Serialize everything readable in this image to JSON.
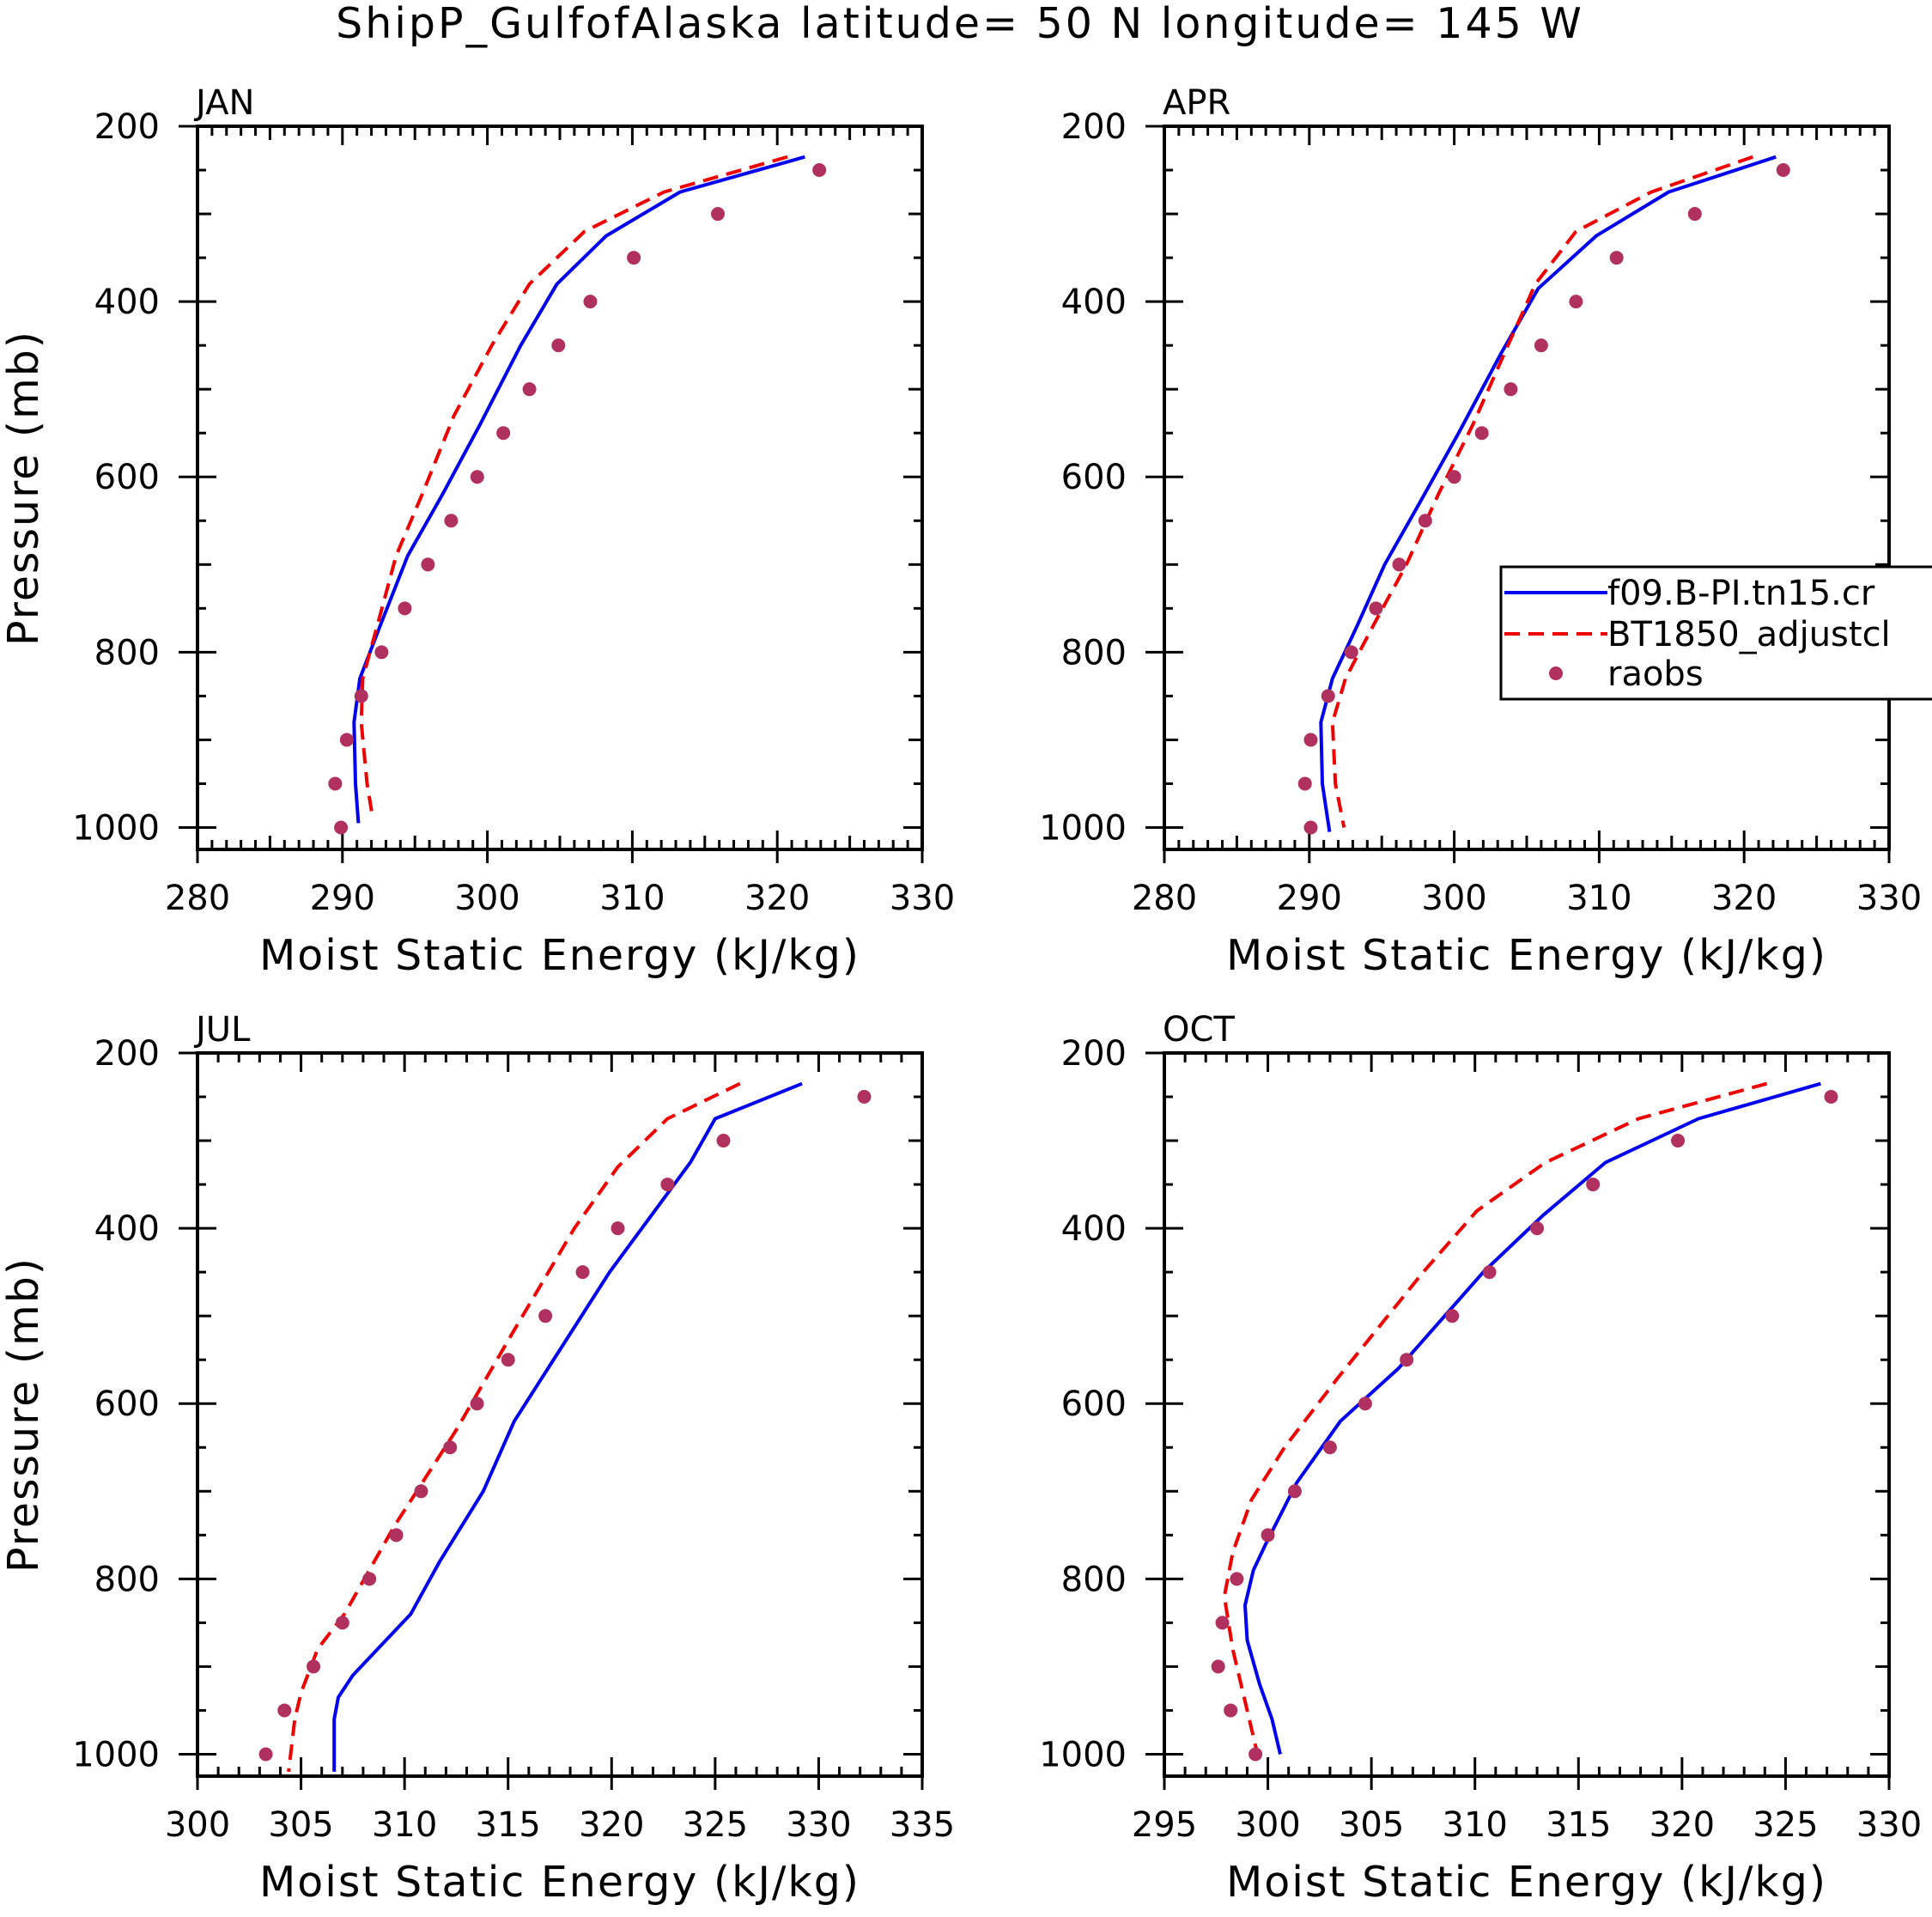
{
  "title": "ShipP_GulfofAlaska  latitude= 50 N longitude= 145 W",
  "colors": {
    "model_a": "#0000ee",
    "model_b": "#ee0000",
    "obs": "#b03060",
    "axis": "#000000"
  },
  "legend": {
    "entries": [
      "f09.B-PI.tn15.cr",
      "BT1850_adjustcl",
      "raobs"
    ]
  },
  "chart_data": [
    {
      "type": "line",
      "panel": "JAN",
      "xlabel": "Moist Static Energy (kJ/kg)",
      "ylabel": "Pressure (mb)",
      "xlim": [
        280,
        330
      ],
      "ylim": [
        1000,
        200
      ],
      "x_ticks": [
        "280",
        "290",
        "300",
        "310",
        "320",
        "330"
      ],
      "y_ticks": [
        "200",
        "400",
        "600",
        "800",
        "1000"
      ],
      "series": [
        {
          "name": "f09.B-PI.tn15.cr",
          "style": "solid",
          "x": [
            321.9,
            313.3,
            308.2,
            304.8,
            302.3,
            299.5,
            296.9,
            294.5,
            292.6,
            291.2,
            290.8,
            290.9,
            291.1
          ],
          "y": [
            235,
            275,
            325,
            380,
            450,
            540,
            620,
            690,
            770,
            830,
            880,
            950,
            995
          ]
        },
        {
          "name": "BT1850_adjustcl",
          "style": "dashed",
          "x": [
            320.7,
            312.2,
            306.7,
            302.9,
            300.3,
            297.7,
            295.5,
            293.7,
            292.4,
            291.4,
            291.3,
            291.7,
            292.1
          ],
          "y": [
            235,
            275,
            320,
            380,
            450,
            530,
            620,
            690,
            770,
            830,
            880,
            950,
            990
          ]
        },
        {
          "name": "raobs",
          "style": "points",
          "x": [
            322.9,
            315.9,
            310.1,
            307.1,
            304.9,
            302.9,
            301.1,
            299.3,
            297.5,
            295.9,
            294.3,
            292.7,
            291.3,
            290.3,
            289.5,
            289.9
          ],
          "y": [
            250,
            300,
            350,
            400,
            450,
            500,
            550,
            600,
            650,
            700,
            750,
            800,
            850,
            900,
            950,
            1000
          ]
        }
      ]
    },
    {
      "type": "line",
      "panel": "APR",
      "xlabel": "Moist Static Energy (kJ/kg)",
      "ylabel": "",
      "xlim": [
        280,
        330
      ],
      "ylim": [
        1000,
        200
      ],
      "x_ticks": [
        "280",
        "290",
        "300",
        "310",
        "320",
        "330"
      ],
      "y_ticks": [
        "200",
        "400",
        "600",
        "800",
        "1000"
      ],
      "series": [
        {
          "name": "f09.B-PI.tn15.cr",
          "style": "solid",
          "x": [
            322.2,
            314.8,
            309.8,
            305.8,
            303.2,
            300.3,
            297.6,
            295.2,
            293.3,
            291.6,
            290.8,
            290.9,
            291.4
          ],
          "y": [
            235,
            275,
            325,
            385,
            460,
            550,
            630,
            700,
            770,
            830,
            880,
            950,
            1005
          ]
        },
        {
          "name": "BT1850_adjustcl",
          "style": "dashed",
          "x": [
            320.6,
            313.6,
            308.4,
            305.6,
            303.7,
            301.3,
            298.9,
            296.7,
            294.4,
            292.5,
            291.6,
            291.8,
            292.4
          ],
          "y": [
            235,
            275,
            320,
            380,
            450,
            540,
            620,
            700,
            770,
            830,
            880,
            950,
            1000
          ]
        },
        {
          "name": "raobs",
          "style": "points",
          "x": [
            322.7,
            316.6,
            311.2,
            308.4,
            306.0,
            303.9,
            301.9,
            300.0,
            298.0,
            296.2,
            294.6,
            292.9,
            291.3,
            290.1,
            289.7,
            290.1
          ],
          "y": [
            250,
            300,
            350,
            400,
            450,
            500,
            550,
            600,
            650,
            700,
            750,
            800,
            850,
            900,
            950,
            1000
          ]
        }
      ]
    },
    {
      "type": "line",
      "panel": "JUL",
      "xlabel": "Moist Static Energy (kJ/kg)",
      "ylabel": "Pressure (mb)",
      "xlim": [
        300,
        335
      ],
      "ylim": [
        1000,
        200
      ],
      "x_ticks": [
        "300",
        "305",
        "310",
        "315",
        "320",
        "325",
        "330",
        "335"
      ],
      "y_ticks": [
        "200",
        "400",
        "600",
        "800",
        "1000"
      ],
      "series": [
        {
          "name": "f09.B-PI.tn15.cr",
          "style": "solid",
          "x": [
            329.2,
            325.0,
            323.8,
            319.9,
            315.3,
            313.8,
            311.7,
            310.3,
            308.7,
            307.5,
            306.8,
            306.6,
            306.6
          ],
          "y": [
            235,
            275,
            325,
            450,
            620,
            700,
            780,
            840,
            880,
            910,
            935,
            960,
            1020
          ]
        },
        {
          "name": "BT1850_adjustcl",
          "style": "dashed",
          "x": [
            326.2,
            322.7,
            320.3,
            318.2,
            315.2,
            312.5,
            309.5,
            307.1,
            305.8,
            305.0,
            304.7,
            304.4
          ],
          "y": [
            235,
            275,
            330,
            400,
            520,
            630,
            740,
            840,
            880,
            930,
            960,
            1020
          ]
        },
        {
          "name": "raobs",
          "style": "points",
          "x": [
            332.2,
            325.4,
            322.7,
            320.3,
            318.6,
            316.8,
            315.0,
            313.5,
            312.2,
            310.8,
            309.6,
            308.3,
            307.0,
            305.6,
            304.2,
            303.3
          ],
          "y": [
            250,
            300,
            350,
            400,
            450,
            500,
            550,
            600,
            650,
            700,
            750,
            800,
            850,
            900,
            950,
            1000
          ]
        }
      ]
    },
    {
      "type": "line",
      "panel": "OCT",
      "xlabel": "Moist Static Energy (kJ/kg)",
      "ylabel": "",
      "xlim": [
        295,
        330
      ],
      "ylim": [
        1000,
        200
      ],
      "x_ticks": [
        "295",
        "300",
        "305",
        "310",
        "315",
        "320",
        "325",
        "330"
      ],
      "y_ticks": [
        "200",
        "400",
        "600",
        "800",
        "1000"
      ],
      "series": [
        {
          "name": "f09.B-PI.tn15.cr",
          "style": "solid",
          "x": [
            326.7,
            320.8,
            316.3,
            313.3,
            310.4,
            306.3,
            303.5,
            301.4,
            299.9,
            299.3,
            298.9,
            299.0,
            299.6,
            300.2,
            300.6
          ],
          "y": [
            235,
            275,
            325,
            385,
            450,
            560,
            620,
            690,
            760,
            790,
            830,
            870,
            920,
            960,
            1000
          ]
        },
        {
          "name": "BT1850_adjustcl",
          "style": "dashed",
          "x": [
            324.1,
            317.9,
            313.4,
            310.1,
            307.5,
            303.4,
            300.8,
            299.2,
            298.3,
            297.9,
            298.3,
            299.0,
            299.5
          ],
          "y": [
            235,
            275,
            325,
            380,
            450,
            570,
            650,
            710,
            770,
            820,
            880,
            950,
            1000
          ]
        },
        {
          "name": "raobs",
          "style": "points",
          "x": [
            327.2,
            319.8,
            315.7,
            313.0,
            310.7,
            308.9,
            306.7,
            304.7,
            303.0,
            301.3,
            300.0,
            298.5,
            297.8,
            297.6,
            298.2,
            299.4
          ],
          "y": [
            250,
            300,
            350,
            400,
            450,
            500,
            550,
            600,
            650,
            700,
            750,
            800,
            850,
            900,
            950,
            1000
          ]
        }
      ]
    }
  ]
}
